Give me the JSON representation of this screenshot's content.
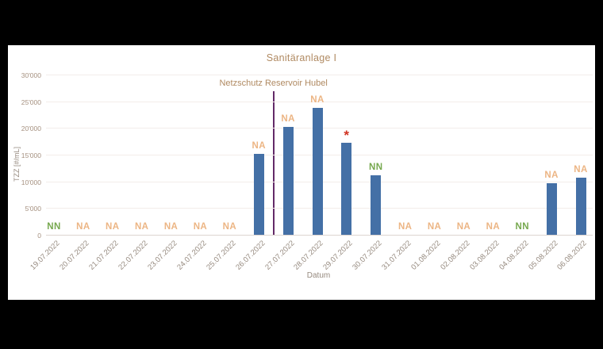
{
  "canvas": {
    "background": "#000000",
    "panel_background": "#ffffff"
  },
  "chart_data": {
    "type": "bar",
    "title": "Sanitäranlage I",
    "xlabel": "Datum",
    "ylabel": "TZZ [#/mL]",
    "ylim": [
      0,
      30000
    ],
    "yticks": [
      0,
      5000,
      10000,
      15000,
      20000,
      25000,
      30000
    ],
    "ytick_labels": [
      "0",
      "5'000",
      "10'000",
      "15'000",
      "20'000",
      "25'000",
      "30'000"
    ],
    "grid": true,
    "legend_position": "none",
    "categories": [
      "19.07.2022",
      "20.07.2022",
      "21.07.2022",
      "22.07.2022",
      "23.07.2022",
      "24.07.2022",
      "25.07.2022",
      "26.07.2022",
      "27.07.2022",
      "28.07.2022",
      "29.07.2022",
      "30.07.2022",
      "31.07.2022",
      "01.08.2022",
      "02.08.2022",
      "03.08.2022",
      "04.08.2022",
      "05.08.2022",
      "06.08.2022"
    ],
    "values": [
      0,
      0,
      0,
      0,
      0,
      0,
      0,
      15200,
      20200,
      23800,
      17300,
      11100,
      0,
      0,
      0,
      0,
      0,
      9600,
      10700
    ],
    "annotations": [
      "NN",
      "NA",
      "NA",
      "NA",
      "NA",
      "NA",
      "NA",
      "NA",
      "NA",
      "NA",
      "*",
      "NN",
      "NA",
      "NA",
      "NA",
      "NA",
      "NN",
      "NA",
      "NA"
    ],
    "event_line": {
      "label": "Netzschutz Reservoir Hubel",
      "between": [
        "26.07.2022",
        "27.07.2022"
      ]
    }
  },
  "colors": {
    "bar": "#4470a6",
    "title_text": "#b08a62",
    "event_line": "#632a68",
    "event_label_text": "#b08a62",
    "ytick_text": "#a5907f",
    "xtick_text": "#968a7f",
    "axis_label_text": "#968a7f",
    "annotation_na": "#ecb584",
    "annotation_nn": "#76a84e",
    "annotation_star": "#d03221",
    "gridline": "#f3edea",
    "baseline": "#ddd5d0"
  }
}
